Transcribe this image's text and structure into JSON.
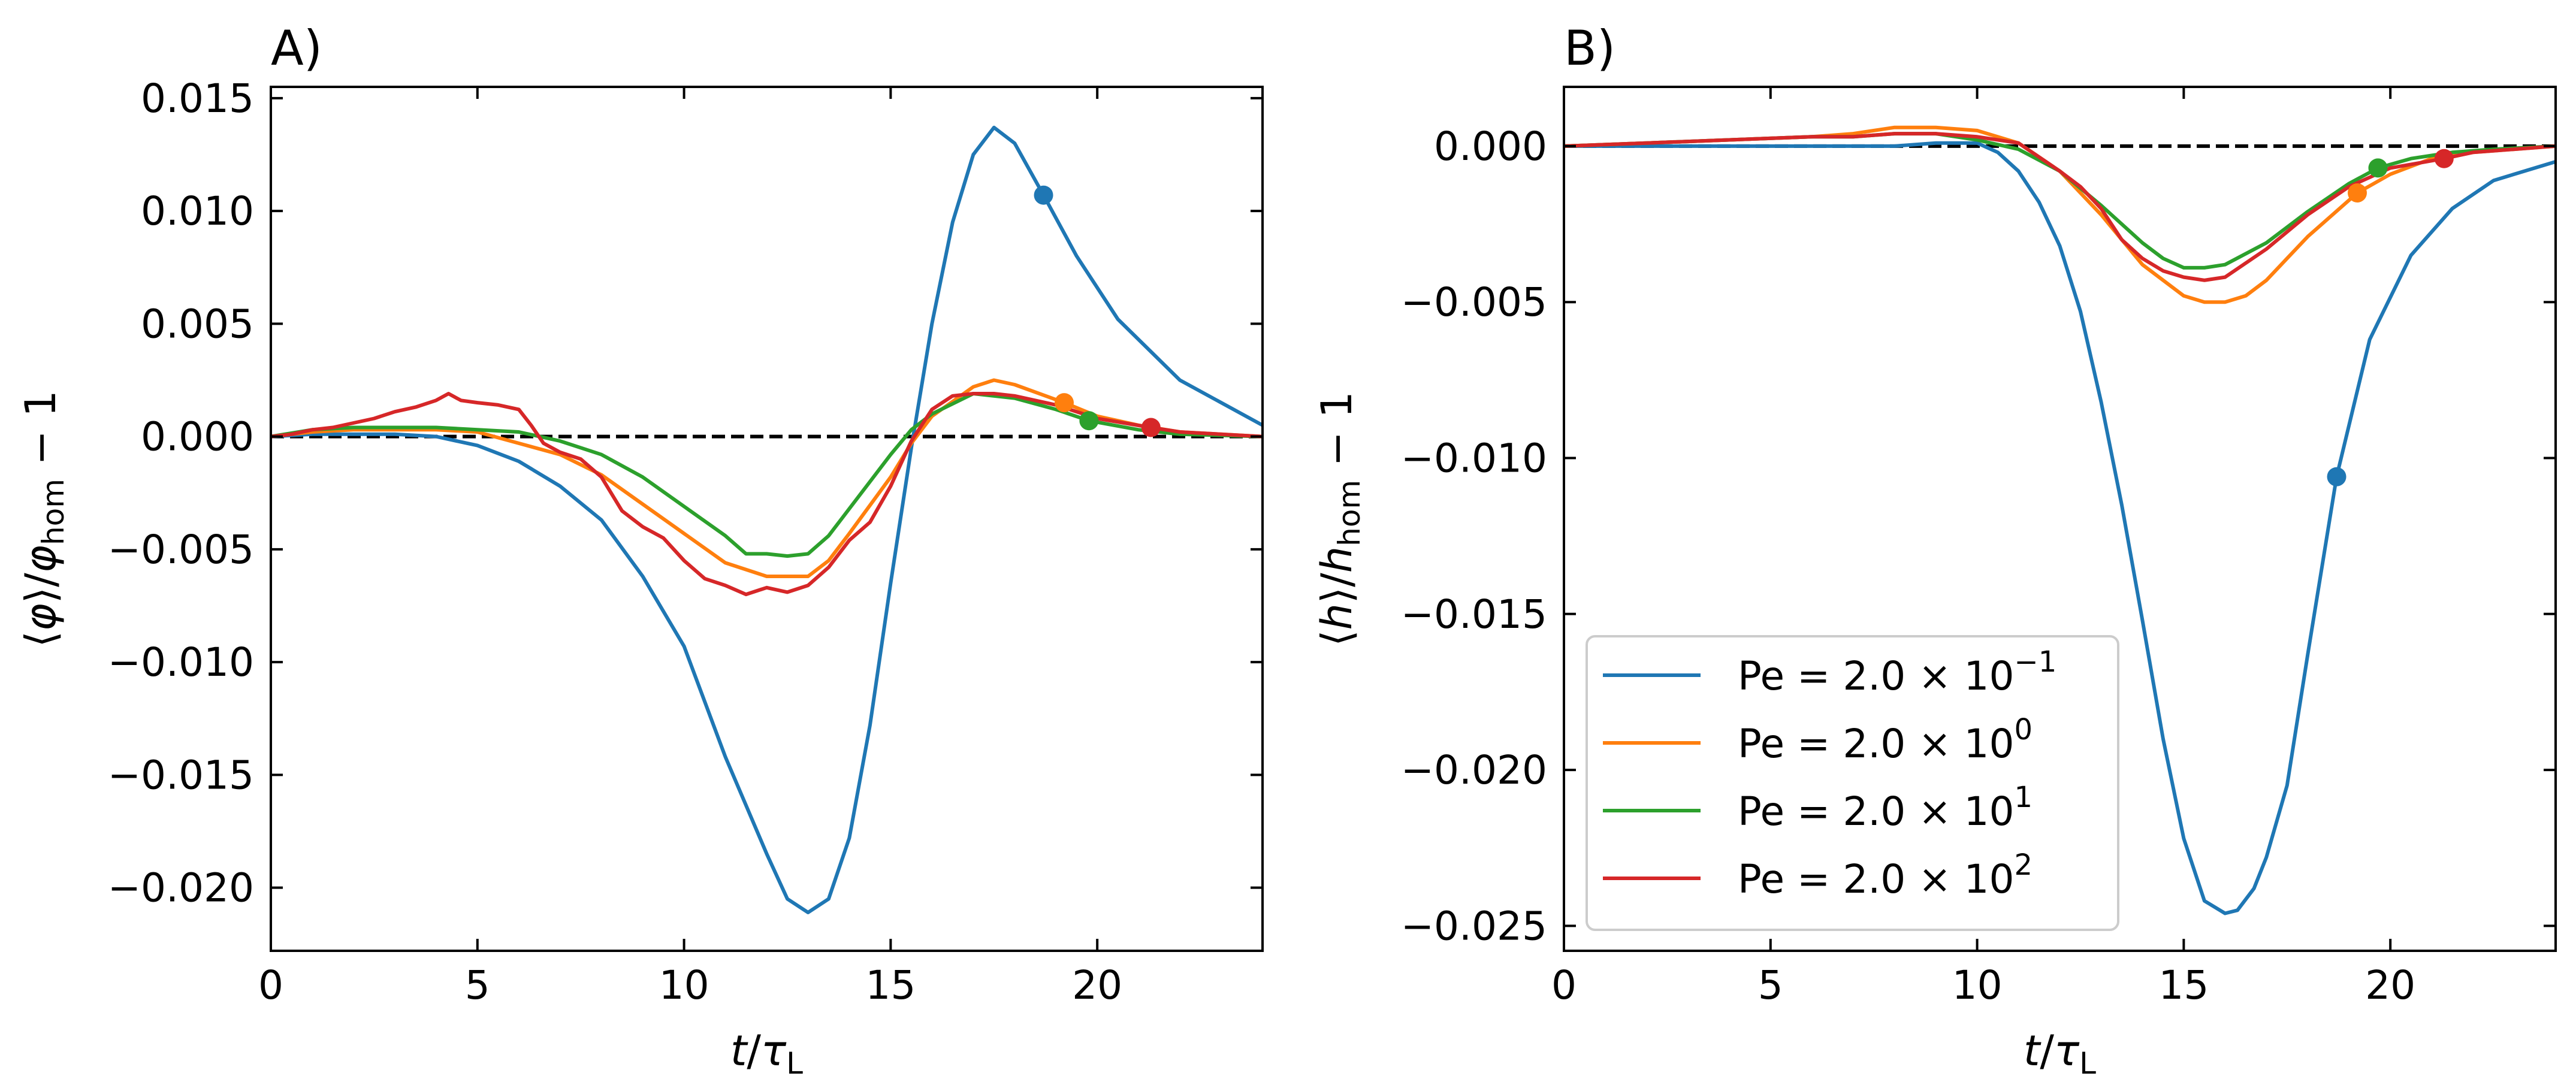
{
  "chart_data": [
    {
      "type": "line",
      "title": "A)",
      "xlabel": "t/τL",
      "ylabel": "⟨φ⟩/φhom − 1",
      "xlim": [
        0,
        24
      ],
      "ylim": [
        -0.0228,
        0.0155
      ],
      "xticks": [
        0,
        5,
        10,
        15,
        20
      ],
      "xtick_labels": [
        "0",
        "5",
        "10",
        "15",
        "20"
      ],
      "yticks": [
        0.015,
        0.01,
        0.005,
        0.0,
        -0.005,
        -0.01,
        -0.015,
        -0.02
      ],
      "ytick_labels": [
        "0.015",
        "0.010",
        "0.005",
        "0.000",
        "−0.005",
        "−0.010",
        "−0.015",
        "−0.020"
      ],
      "reference_line": 0.0,
      "grid": false,
      "series": [
        {
          "name": "Pe = 2.0 × 10^−1",
          "color": "#1f77b4",
          "x": [
            0,
            1,
            2,
            3,
            4,
            5,
            6,
            7,
            8,
            9,
            10,
            11,
            12,
            12.5,
            13,
            13.5,
            14,
            14.5,
            15,
            15.5,
            16,
            16.5,
            17,
            17.5,
            18,
            18.7,
            19.5,
            20.5,
            22,
            24
          ],
          "y": [
            0,
            0.0001,
            0.0001,
            0.0001,
            0.0,
            -0.0004,
            -0.0011,
            -0.0022,
            -0.0037,
            -0.0062,
            -0.0093,
            -0.0142,
            -0.0185,
            -0.0205,
            -0.0211,
            -0.0205,
            -0.0178,
            -0.0128,
            -0.0065,
            -0.0005,
            0.005,
            0.0095,
            0.0125,
            0.0137,
            0.013,
            0.0107,
            0.008,
            0.0052,
            0.0025,
            0.0005
          ]
        },
        {
          "name": "Pe = 2.0 × 10^0",
          "color": "#ff7f0e",
          "x": [
            0,
            1,
            2,
            3,
            4,
            5,
            6,
            7,
            8,
            9,
            10,
            11,
            12,
            13,
            13.5,
            14,
            15,
            15.5,
            16,
            17,
            17.5,
            18,
            19.2,
            20,
            21,
            22,
            23,
            24
          ],
          "y": [
            0,
            0.0002,
            0.0003,
            0.0003,
            0.0003,
            0.0002,
            -0.0003,
            -0.0008,
            -0.0017,
            -0.003,
            -0.0043,
            -0.0056,
            -0.0062,
            -0.0062,
            -0.0055,
            -0.0043,
            -0.0018,
            -0.0003,
            0.0009,
            0.0022,
            0.0025,
            0.0023,
            0.0015,
            0.0009,
            0.0005,
            0.0002,
            0.0001,
            0
          ]
        },
        {
          "name": "Pe = 2.0 × 10^1",
          "color": "#2ca02c",
          "x": [
            0,
            1,
            2,
            3,
            4,
            5,
            6,
            7,
            8,
            9,
            10,
            11,
            11.5,
            12,
            12.5,
            13,
            13.5,
            14,
            14.5,
            15,
            15.5,
            16,
            17,
            18,
            19,
            19.8,
            21,
            22,
            24
          ],
          "y": [
            0,
            0.0003,
            0.0004,
            0.0004,
            0.0004,
            0.0003,
            0.0002,
            -0.0002,
            -0.0008,
            -0.0018,
            -0.0031,
            -0.0044,
            -0.0052,
            -0.0052,
            -0.0053,
            -0.0052,
            -0.0044,
            -0.0032,
            -0.002,
            -0.0008,
            0.0003,
            0.001,
            0.0019,
            0.0017,
            0.0012,
            0.0007,
            0.0003,
            0.0001,
            0
          ]
        },
        {
          "name": "Pe = 2.0 × 10^2",
          "color": "#d62728",
          "x": [
            0,
            0.5,
            1,
            1.5,
            2,
            2.5,
            3,
            3.5,
            4,
            4.3,
            4.6,
            5,
            5.5,
            6,
            6.3,
            6.6,
            7,
            7.5,
            8,
            8.5,
            9,
            9.5,
            10,
            10.5,
            11,
            11.5,
            12,
            12.5,
            13,
            13.5,
            14,
            14.5,
            15,
            15.5,
            16,
            16.5,
            17,
            17.5,
            18,
            19,
            20,
            21.3,
            22,
            24
          ],
          "y": [
            0,
            0.0001,
            0.0003,
            0.0004,
            0.0006,
            0.0008,
            0.0011,
            0.0013,
            0.0016,
            0.0019,
            0.0016,
            0.0015,
            0.0014,
            0.0012,
            0.0005,
            -0.0003,
            -0.0007,
            -0.001,
            -0.0018,
            -0.0033,
            -0.004,
            -0.0045,
            -0.0055,
            -0.0063,
            -0.0066,
            -0.007,
            -0.0067,
            -0.0069,
            -0.0066,
            -0.0058,
            -0.0046,
            -0.0038,
            -0.0022,
            -0.0002,
            0.0012,
            0.0018,
            0.0019,
            0.0019,
            0.0018,
            0.0014,
            0.0008,
            0.0004,
            0.0002,
            0
          ]
        }
      ],
      "end_markers": [
        {
          "series": "Pe = 2.0 × 10^−1",
          "x": 18.7,
          "y": 0.0107
        },
        {
          "series": "Pe = 2.0 × 10^0",
          "x": 19.2,
          "y": 0.0015
        },
        {
          "series": "Pe = 2.0 × 10^1",
          "x": 19.8,
          "y": 0.0007
        },
        {
          "series": "Pe = 2.0 × 10^2",
          "x": 21.3,
          "y": 0.0004
        }
      ]
    },
    {
      "type": "line",
      "title": "B)",
      "xlabel": "t/τL",
      "ylabel": "⟨h⟩/hhom − 1",
      "xlim": [
        0,
        24
      ],
      "ylim": [
        -0.0258,
        0.0019
      ],
      "xticks": [
        0,
        5,
        10,
        15,
        20
      ],
      "xtick_labels": [
        "0",
        "5",
        "10",
        "15",
        "20"
      ],
      "yticks": [
        0.0,
        -0.005,
        -0.01,
        -0.015,
        -0.02,
        -0.025
      ],
      "ytick_labels": [
        "0.000",
        "−0.005",
        "−0.010",
        "−0.015",
        "−0.020",
        "−0.025"
      ],
      "reference_line": 0.0,
      "grid": false,
      "legend_position": "lower-left",
      "series": [
        {
          "name": "Pe = 2.0 × 10^−1",
          "color": "#1f77b4",
          "x": [
            0,
            2,
            4,
            6,
            8,
            9,
            10,
            10.5,
            11,
            11.5,
            12,
            12.5,
            13,
            13.5,
            14,
            14.5,
            15,
            15.5,
            16,
            16.3,
            16.7,
            17,
            17.5,
            18,
            18.7,
            19.5,
            20.5,
            21.5,
            22.5,
            24
          ],
          "y": [
            0,
            0,
            0,
            0,
            0,
            0.0001,
            0.0001,
            -0.0002,
            -0.0008,
            -0.0018,
            -0.0032,
            -0.0053,
            -0.0082,
            -0.0115,
            -0.0152,
            -0.019,
            -0.0222,
            -0.0242,
            -0.0246,
            -0.0245,
            -0.0238,
            -0.0228,
            -0.0205,
            -0.0163,
            -0.0106,
            -0.0062,
            -0.0035,
            -0.002,
            -0.0011,
            -0.0005
          ]
        },
        {
          "name": "Pe = 2.0 × 10^0",
          "color": "#ff7f0e",
          "x": [
            0,
            2,
            4,
            6,
            7,
            8,
            9,
            10,
            11,
            12,
            13,
            14,
            15,
            15.5,
            16,
            16.5,
            17,
            18,
            19.2,
            20,
            21,
            22,
            23,
            24
          ],
          "y": [
            0,
            0.0001,
            0.0002,
            0.0003,
            0.0004,
            0.0006,
            0.0006,
            0.0005,
            0.0001,
            -0.0008,
            -0.0022,
            -0.0038,
            -0.0048,
            -0.005,
            -0.005,
            -0.0048,
            -0.0043,
            -0.0029,
            -0.0015,
            -0.0009,
            -0.0004,
            -0.0002,
            -0.0001,
            0
          ]
        },
        {
          "name": "Pe = 2.0 × 10^1",
          "color": "#2ca02c",
          "x": [
            0,
            2,
            4,
            6,
            7,
            8,
            9,
            10,
            11,
            12,
            13,
            14,
            14.5,
            15,
            15.5,
            16,
            17,
            18,
            19,
            19.7,
            20.5,
            21.5,
            22.5,
            24
          ],
          "y": [
            0,
            0.0001,
            0.0002,
            0.0003,
            0.0003,
            0.0004,
            0.0004,
            0.0002,
            -0.0001,
            -0.0008,
            -0.0019,
            -0.0031,
            -0.0036,
            -0.0039,
            -0.0039,
            -0.0038,
            -0.0031,
            -0.0021,
            -0.0012,
            -0.0007,
            -0.0004,
            -0.0002,
            -0.0001,
            0
          ]
        },
        {
          "name": "Pe = 2.0 × 10^2",
          "color": "#d62728",
          "x": [
            0,
            2,
            4,
            6,
            7,
            8,
            9,
            10,
            11,
            12,
            12.5,
            13,
            13.5,
            14,
            14.5,
            15,
            15.5,
            16,
            17,
            18,
            19,
            20,
            21.3,
            22,
            23,
            24
          ],
          "y": [
            0,
            0.0001,
            0.0002,
            0.0003,
            0.0003,
            0.0004,
            0.0004,
            0.0003,
            0.0001,
            -0.0008,
            -0.0013,
            -0.002,
            -0.003,
            -0.0036,
            -0.004,
            -0.0042,
            -0.0043,
            -0.0042,
            -0.0033,
            -0.0022,
            -0.0013,
            -0.0007,
            -0.0004,
            -0.0002,
            -0.0001,
            0
          ]
        }
      ],
      "end_markers": [
        {
          "series": "Pe = 2.0 × 10^−1",
          "x": 18.7,
          "y": -0.0106
        },
        {
          "series": "Pe = 2.0 × 10^0",
          "x": 19.2,
          "y": -0.0015
        },
        {
          "series": "Pe = 2.0 × 10^1",
          "x": 19.7,
          "y": -0.0007
        },
        {
          "series": "Pe = 2.0 × 10^2",
          "x": 21.3,
          "y": -0.0004
        }
      ],
      "legend": [
        {
          "label_prefix": "Pe = 2.0 × 10",
          "exponent": "−1",
          "color": "#1f77b4"
        },
        {
          "label_prefix": "Pe = 2.0 × 10",
          "exponent": "0",
          "color": "#ff7f0e"
        },
        {
          "label_prefix": "Pe = 2.0 × 10",
          "exponent": "1",
          "color": "#2ca02c"
        },
        {
          "label_prefix": "Pe = 2.0 × 10",
          "exponent": "2",
          "color": "#d62728"
        }
      ]
    }
  ]
}
